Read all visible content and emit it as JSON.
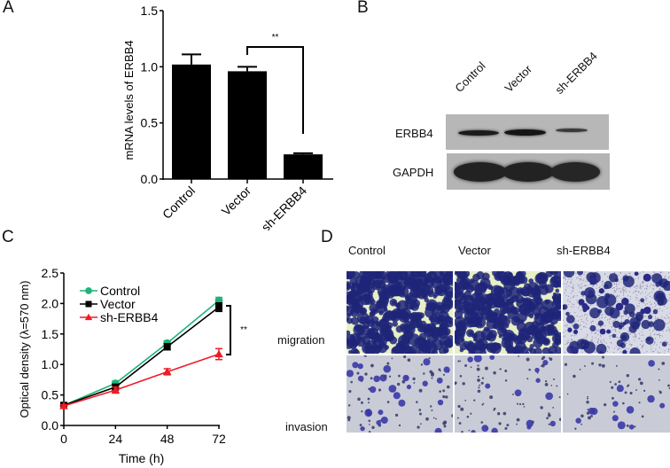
{
  "panels": {
    "A": {
      "letter": "A"
    },
    "B": {
      "letter": "B"
    },
    "C": {
      "letter": "C"
    },
    "D": {
      "letter": "D"
    }
  },
  "chart_data": [
    {
      "panel": "A",
      "type": "bar",
      "title": "",
      "xlabel": "",
      "ylabel": "mRNA levels of ERBB4",
      "categories": [
        "Control",
        "Vector",
        "sh-ERBB4"
      ],
      "values": [
        1.02,
        0.96,
        0.22
      ],
      "errors": [
        0.09,
        0.04,
        0.01
      ],
      "ylim": [
        0,
        1.5
      ],
      "yticks": [
        "0.0",
        "0.5",
        "1.0",
        "1.5"
      ],
      "bar_color": "#000000",
      "grid": false,
      "annotations": [
        {
          "text": "**",
          "between": [
            "Vector",
            "sh-ERBB4"
          ]
        }
      ]
    },
    {
      "panel": "C",
      "type": "line",
      "title": "",
      "xlabel": "Time (h)",
      "ylabel": "Optical density (λ=570 nm)",
      "x": [
        0,
        24,
        48,
        72
      ],
      "xticks": [
        "0",
        "24",
        "48",
        "72"
      ],
      "ylim": [
        0,
        2.5
      ],
      "yticks": [
        "0.0",
        "0.5",
        "1.0",
        "1.5",
        "2.0",
        "2.5"
      ],
      "grid": false,
      "legend_position": "upper-left",
      "series": [
        {
          "name": "Control",
          "values": [
            0.33,
            0.69,
            1.35,
            2.05
          ],
          "errors": [
            0.02,
            0.04,
            0.04,
            0.05
          ],
          "color": "#1fb37a",
          "marker": "circle"
        },
        {
          "name": "Vector",
          "values": [
            0.33,
            0.63,
            1.29,
            1.94
          ],
          "errors": [
            0.02,
            0.04,
            0.05,
            0.07
          ],
          "color": "#000000",
          "marker": "square"
        },
        {
          "name": "sh-ERBB4",
          "values": [
            0.32,
            0.58,
            0.88,
            1.17
          ],
          "errors": [
            0.02,
            0.05,
            0.05,
            0.09
          ],
          "color": "#ee1c25",
          "marker": "triangle"
        }
      ],
      "annotations": [
        {
          "text": "**",
          "between": [
            "Vector",
            "sh-ERBB4"
          ],
          "at_x": 72
        }
      ]
    }
  ],
  "western_blot": {
    "lanes": [
      "Control",
      "Vector",
      "sh-ERBB4"
    ],
    "rows": [
      {
        "label": "ERBB4",
        "band_intensity": [
          0.85,
          0.9,
          0.45
        ]
      },
      {
        "label": "GAPDH",
        "band_intensity": [
          1.0,
          1.0,
          1.0
        ]
      }
    ]
  },
  "transwell": {
    "columns": [
      "Control",
      "Vector",
      "sh-ERBB4"
    ],
    "rows": [
      {
        "label": "migration",
        "density": [
          0.55,
          0.5,
          0.1
        ]
      },
      {
        "label": "invasion",
        "density": [
          0.2,
          0.18,
          0.12
        ]
      }
    ],
    "colors": {
      "stain": "#1f2478",
      "migration_bg": "#e7efc6",
      "invasion_bg": "#c9ccd6",
      "invasion_stain": "#3a38a8"
    }
  }
}
